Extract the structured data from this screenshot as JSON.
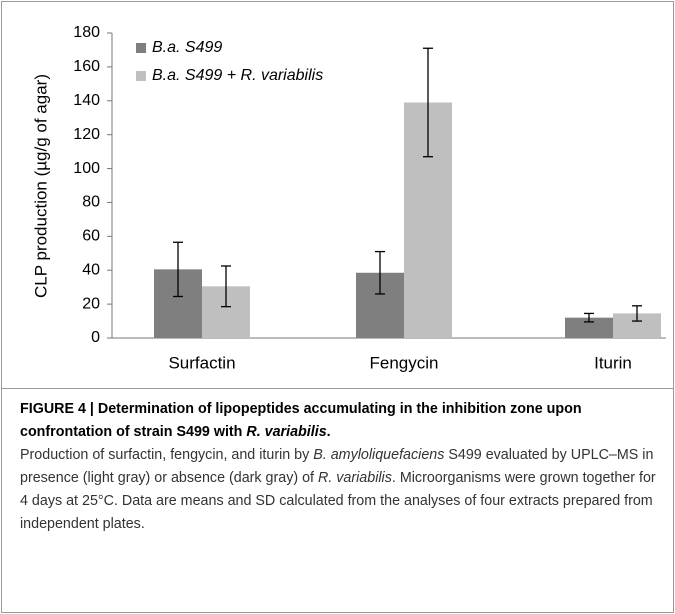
{
  "chart_data": {
    "type": "bar",
    "ylabel": "CLP production (µg/g of agar)",
    "categories": [
      "Surfactin",
      "Fengycin",
      "Iturin"
    ],
    "series": [
      {
        "name": "B.a. S499",
        "color": "#7f7f7f",
        "values": [
          40.5,
          38.5,
          12
        ],
        "errors": [
          16,
          12.5,
          2.5
        ]
      },
      {
        "name": "B.a. S499 + R. variabilis",
        "color": "#bfbfbf",
        "values": [
          30.5,
          139,
          14.5
        ],
        "errors": [
          12,
          32,
          4.5
        ]
      }
    ],
    "ylim": [
      0,
      180
    ],
    "yticks": [
      0,
      20,
      40,
      60,
      80,
      100,
      120,
      140,
      160,
      180
    ],
    "grid": false,
    "legend": "upper left"
  },
  "caption": {
    "title": [
      "FIGURE 4 | Determination of lipopeptides accumulating in the inhibition zone upon confrontation of strain S499 with ",
      "R. variabilis",
      "."
    ],
    "body": [
      "Production of surfactin, fengycin, and iturin by ",
      "B. amyloliquefaciens",
      " S499 evaluated by UPLC–MS in presence (light gray) or absence (dark gray) of ",
      "R. variabilis",
      ". Microorganisms were grown together for 4 days at 25°C. Data are means and SD calculated from the analyses of four extracts prepared from independent plates."
    ]
  }
}
